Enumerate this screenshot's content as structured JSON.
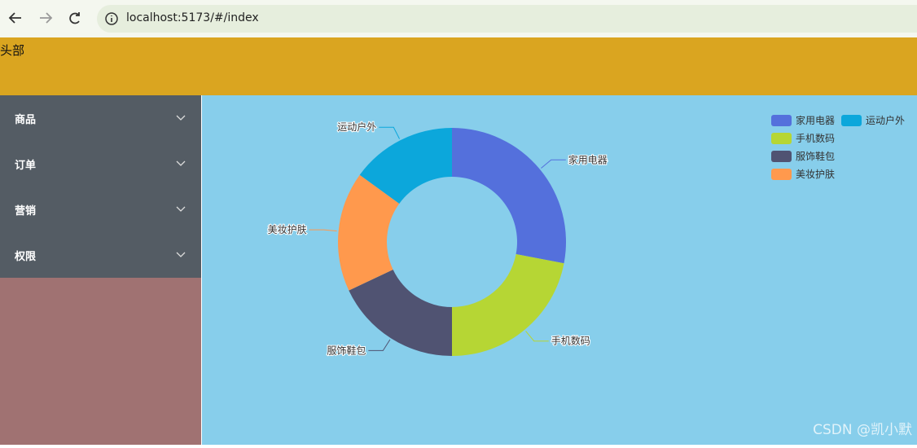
{
  "browser": {
    "url": "localhost:5173/#/index"
  },
  "header": {
    "title": "头部"
  },
  "sidebar": {
    "menu": [
      "商品",
      "订单",
      "营销",
      "权限"
    ]
  },
  "chart_data": {
    "type": "pie",
    "donut": true,
    "categories": [
      "家用电器",
      "手机数码",
      "服饰鞋包",
      "美妆护肤",
      "运动户外"
    ],
    "values": [
      28,
      22,
      18,
      17,
      15
    ],
    "colors": [
      "#5470dc",
      "#b6d634",
      "#505372",
      "#ff994d",
      "#0ca7db"
    ],
    "legend": "top-right"
  },
  "watermark": "CSDN @凯小默"
}
